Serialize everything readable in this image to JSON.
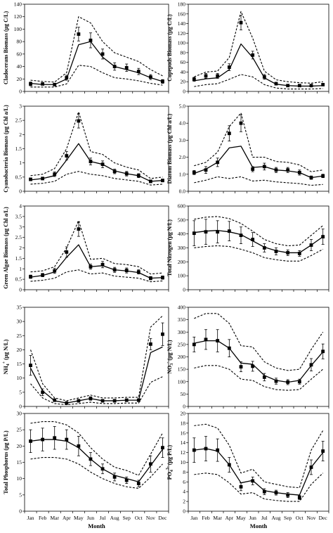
{
  "chart_data": [
    {
      "type": "line",
      "ylabel": "Cladocerans Biomass (μg C/L)",
      "ylim": [
        0,
        140
      ],
      "yticks": [
        0,
        20,
        40,
        60,
        80,
        100,
        120,
        140
      ],
      "xtick_labels_shown": false,
      "categories": [
        "Jan",
        "Feb",
        "Mar",
        "Apr",
        "May",
        "Jun",
        "Jul",
        "Aug",
        "Sep",
        "Oct",
        "Nov",
        "Dec"
      ],
      "series": [
        {
          "style": "observed_points_with_error_bars",
          "values": [
            12,
            12,
            11,
            22,
            92,
            82,
            60,
            40,
            38,
            32,
            23,
            16
          ],
          "err": [
            3,
            2,
            2,
            4,
            11,
            12,
            8,
            6,
            6,
            5,
            4,
            3
          ]
        },
        {
          "style": "solid_line",
          "values": [
            13,
            11,
            11,
            20,
            75,
            80,
            55,
            40,
            35,
            30,
            22,
            16
          ]
        },
        {
          "style": "dashed_line",
          "values": [
            18,
            16,
            15,
            30,
            120,
            110,
            80,
            62,
            55,
            48,
            35,
            25
          ]
        },
        {
          "style": "dashed_line",
          "values": [
            7,
            7,
            7,
            12,
            42,
            40,
            30,
            22,
            20,
            17,
            13,
            10
          ]
        }
      ]
    },
    {
      "type": "line",
      "ylabel": "Copepods Biomass (μg C/L)",
      "ylim": [
        0,
        180
      ],
      "yticks": [
        0,
        20,
        40,
        60,
        80,
        100,
        120,
        140,
        160,
        180
      ],
      "xtick_labels_shown": false,
      "categories": [
        "Jan",
        "Feb",
        "Mar",
        "Apr",
        "May",
        "Jun",
        "Jul",
        "Aug",
        "Sep",
        "Oct",
        "Nov",
        "Dec"
      ],
      "series": [
        {
          "style": "observed_points_with_error_bars",
          "values": [
            25,
            32,
            32,
            50,
            142,
            75,
            30,
            16,
            12,
            12,
            12,
            14
          ],
          "err": [
            4,
            5,
            5,
            7,
            15,
            8,
            5,
            3,
            2,
            2,
            2,
            2
          ]
        },
        {
          "style": "solid_line",
          "values": [
            22,
            26,
            28,
            45,
            98,
            70,
            28,
            15,
            12,
            11,
            11,
            12
          ]
        },
        {
          "style": "dashed_line",
          "values": [
            30,
            40,
            42,
            70,
            165,
            110,
            42,
            24,
            20,
            18,
            17,
            20
          ]
        },
        {
          "style": "dashed_line",
          "values": [
            10,
            14,
            16,
            25,
            35,
            30,
            14,
            7,
            5,
            5,
            5,
            6
          ]
        }
      ]
    },
    {
      "type": "line",
      "ylabel": "Cyanobacteria Biomass (μg Chl a/L)",
      "ylim": [
        0,
        3
      ],
      "yticks": [
        0,
        0.5,
        1,
        1.5,
        2,
        2.5,
        3
      ],
      "xtick_labels_shown": false,
      "categories": [
        "Jan",
        "Feb",
        "Mar",
        "Apr",
        "May",
        "Jun",
        "Jul",
        "Aug",
        "Sep",
        "Oct",
        "Nov",
        "Dec"
      ],
      "series": [
        {
          "style": "observed_points_with_error_bars",
          "values": [
            0.42,
            0.45,
            0.6,
            1.25,
            2.48,
            1.05,
            0.95,
            0.7,
            0.62,
            0.55,
            0.35,
            0.38
          ],
          "err": [
            0.05,
            0.05,
            0.08,
            0.15,
            0.25,
            0.12,
            0.12,
            0.08,
            0.08,
            0.07,
            0.05,
            0.05
          ]
        },
        {
          "style": "solid_line",
          "values": [
            0.4,
            0.45,
            0.55,
            1.1,
            1.68,
            1.05,
            0.95,
            0.72,
            0.62,
            0.55,
            0.35,
            0.38
          ]
        },
        {
          "style": "dashed_line",
          "values": [
            0.55,
            0.6,
            0.8,
            1.5,
            2.8,
            1.4,
            1.3,
            1.0,
            0.85,
            0.75,
            0.45,
            0.5
          ]
        },
        {
          "style": "dashed_line",
          "values": [
            0.25,
            0.28,
            0.35,
            0.6,
            0.7,
            0.6,
            0.55,
            0.45,
            0.4,
            0.35,
            0.22,
            0.25
          ]
        }
      ]
    },
    {
      "type": "line",
      "ylabel": "Diatom Biomass (μg Chl a/L)",
      "ylim": [
        0,
        5
      ],
      "yticks": [
        "0.0",
        "1.0",
        "2.0",
        "3.0",
        "4.0",
        "5.0"
      ],
      "xtick_labels_shown": false,
      "categories": [
        "Jan",
        "Feb",
        "Mar",
        "Apr",
        "May",
        "Jun",
        "Jul",
        "Aug",
        "Sep",
        "Oct",
        "Nov",
        "Dec"
      ],
      "series": [
        {
          "style": "observed_points_with_error_bars",
          "values": [
            1.1,
            1.25,
            1.7,
            3.4,
            4.0,
            1.3,
            1.45,
            1.25,
            1.25,
            1.1,
            0.8,
            0.9
          ],
          "err": [
            0.12,
            0.2,
            0.25,
            0.45,
            0.5,
            0.15,
            0.2,
            0.15,
            0.15,
            0.15,
            0.1,
            0.1
          ]
        },
        {
          "style": "solid_line",
          "values": [
            1.05,
            1.3,
            1.7,
            2.55,
            2.65,
            1.4,
            1.45,
            1.25,
            1.2,
            1.1,
            0.8,
            0.9
          ]
        },
        {
          "style": "dashed_line",
          "values": [
            1.5,
            1.7,
            2.3,
            3.8,
            4.6,
            2.0,
            2.0,
            1.75,
            1.7,
            1.55,
            1.15,
            1.25
          ]
        },
        {
          "style": "dashed_line",
          "values": [
            0.5,
            0.65,
            0.85,
            0.75,
            0.85,
            0.6,
            0.65,
            0.55,
            0.5,
            0.45,
            0.35,
            0.4
          ]
        }
      ]
    },
    {
      "type": "line",
      "ylabel": "Green Algae Biomass (μg Chl a/L)",
      "ylim": [
        0,
        4
      ],
      "yticks": [
        0,
        0.5,
        1,
        1.5,
        2,
        2.5,
        3,
        3.5,
        4
      ],
      "xtick_labels_shown": false,
      "categories": [
        "Jan",
        "Feb",
        "Mar",
        "Apr",
        "May",
        "Jun",
        "Jul",
        "Aug",
        "Sep",
        "Oct",
        "Nov",
        "Dec"
      ],
      "series": [
        {
          "style": "observed_points_with_error_bars",
          "values": [
            0.62,
            0.7,
            0.9,
            1.8,
            2.9,
            1.1,
            1.2,
            0.95,
            0.92,
            0.85,
            0.55,
            0.58
          ],
          "err": [
            0.08,
            0.08,
            0.12,
            0.25,
            0.35,
            0.12,
            0.15,
            0.12,
            0.12,
            0.1,
            0.08,
            0.08
          ]
        },
        {
          "style": "solid_line",
          "values": [
            0.6,
            0.68,
            0.85,
            1.55,
            2.15,
            1.1,
            1.15,
            0.95,
            0.9,
            0.82,
            0.55,
            0.58
          ]
        },
        {
          "style": "dashed_line",
          "values": [
            0.85,
            0.9,
            1.1,
            2.0,
            3.3,
            1.45,
            1.5,
            1.25,
            1.2,
            1.1,
            0.75,
            0.8
          ]
        },
        {
          "style": "dashed_line",
          "values": [
            0.4,
            0.45,
            0.55,
            0.85,
            0.95,
            0.75,
            0.8,
            0.65,
            0.6,
            0.55,
            0.38,
            0.42
          ]
        }
      ]
    },
    {
      "type": "line",
      "ylabel": "Total Nitrogen (μg N/L)",
      "ylim": [
        0,
        600
      ],
      "yticks": [
        0,
        100,
        200,
        300,
        400,
        500,
        600
      ],
      "xtick_labels_shown": false,
      "categories": [
        "Jan",
        "Feb",
        "Mar",
        "Apr",
        "May",
        "Jun",
        "Jul",
        "Aug",
        "Sep",
        "Oct",
        "Nov",
        "Dec"
      ],
      "series": [
        {
          "style": "observed_points_with_error_bars",
          "values": [
            405,
            415,
            415,
            420,
            390,
            360,
            300,
            275,
            265,
            260,
            320,
            380
          ],
          "err": [
            90,
            90,
            80,
            70,
            60,
            50,
            30,
            25,
            20,
            20,
            40,
            55
          ]
        },
        {
          "style": "solid_line",
          "values": [
            410,
            420,
            425,
            415,
            395,
            350,
            305,
            280,
            265,
            265,
            320,
            380
          ]
        },
        {
          "style": "dashed_line",
          "values": [
            505,
            520,
            525,
            510,
            475,
            420,
            360,
            330,
            315,
            320,
            390,
            460
          ]
        },
        {
          "style": "dashed_line",
          "values": [
            300,
            310,
            315,
            310,
            290,
            265,
            230,
            215,
            205,
            205,
            245,
            290
          ]
        }
      ]
    },
    {
      "type": "line",
      "ylabel": "NH4+ (μg N/L)",
      "ylim": [
        0,
        35
      ],
      "yticks": [
        0,
        5,
        10,
        15,
        20,
        25,
        30,
        35
      ],
      "xtick_labels_shown": false,
      "categories": [
        "Jan",
        "Feb",
        "Mar",
        "Apr",
        "May",
        "Jun",
        "Jul",
        "Aug",
        "Sep",
        "Oct",
        "Nov",
        "Dec"
      ],
      "series": [
        {
          "style": "observed_points_with_error_bars",
          "values": [
            14.5,
            5.0,
            2.2,
            1.2,
            2.0,
            2.8,
            2.0,
            2.0,
            2.2,
            2.2,
            22.0,
            25.5
          ],
          "err": [
            3.5,
            1.2,
            0.5,
            0.3,
            0.5,
            0.6,
            0.5,
            0.5,
            0.5,
            0.5,
            2.0,
            4.0
          ]
        },
        {
          "style": "solid_line",
          "values": [
            13.5,
            5.5,
            2.0,
            1.2,
            2.0,
            2.8,
            2.0,
            2.0,
            2.2,
            2.2,
            19.0,
            21.0
          ]
        },
        {
          "style": "dashed_line",
          "values": [
            20.0,
            8.0,
            3.0,
            2.0,
            3.0,
            4.0,
            3.0,
            3.0,
            3.2,
            3.2,
            28.0,
            32.0
          ]
        },
        {
          "style": "dashed_line",
          "values": [
            8.0,
            3.0,
            1.0,
            0.6,
            1.0,
            1.5,
            1.0,
            1.0,
            1.2,
            1.2,
            8.5,
            10.5
          ]
        }
      ]
    },
    {
      "type": "line",
      "ylabel": "NO3- (μg N/L)",
      "ylim": [
        0,
        400
      ],
      "yticks": [
        0,
        50,
        100,
        150,
        200,
        250,
        300,
        350,
        400
      ],
      "xtick_labels_shown": false,
      "categories": [
        "Jan",
        "Feb",
        "Mar",
        "Apr",
        "May",
        "Jun",
        "Jul",
        "Aug",
        "Sep",
        "Oct",
        "Nov",
        "Dec"
      ],
      "series": [
        {
          "style": "observed_points_with_error_bars",
          "values": [
            250,
            270,
            265,
            235,
            160,
            162,
            118,
            102,
            98,
            100,
            168,
            222
          ],
          "err": [
            30,
            40,
            45,
            35,
            20,
            20,
            15,
            12,
            10,
            10,
            25,
            30
          ]
        },
        {
          "style": "solid_line",
          "values": [
            255,
            265,
            265,
            235,
            175,
            170,
            125,
            105,
            98,
            105,
            165,
            220
          ]
        },
        {
          "style": "dashed_line",
          "values": [
            355,
            375,
            375,
            335,
            245,
            240,
            180,
            155,
            145,
            150,
            230,
            300
          ]
        },
        {
          "style": "dashed_line",
          "values": [
            155,
            165,
            165,
            150,
            110,
            105,
            80,
            68,
            65,
            68,
            110,
            150
          ]
        }
      ]
    },
    {
      "type": "line",
      "ylabel": "Total Phosphorus (μg P/L)",
      "xlabel": "Month",
      "ylim": [
        0,
        30
      ],
      "yticks": [
        0,
        5,
        10,
        15,
        20,
        25,
        30
      ],
      "categories": [
        "Jan",
        "Feb",
        "Mar",
        "Apr",
        "May",
        "Jun",
        "Jul",
        "Aug",
        "Sep",
        "Oct",
        "Nov",
        "Dec"
      ],
      "series": [
        {
          "style": "observed_points_with_error_bars",
          "values": [
            21.5,
            22.0,
            22.5,
            22.0,
            20.0,
            16.0,
            13.0,
            10.5,
            9.5,
            8.5,
            14.5,
            19.5
          ],
          "err": [
            3.5,
            3.5,
            3.5,
            3.0,
            3.0,
            2.0,
            1.5,
            1.2,
            1.0,
            1.0,
            2.5,
            3.0
          ]
        },
        {
          "style": "solid_line",
          "values": [
            21.5,
            22.0,
            22.0,
            21.5,
            19.5,
            16.0,
            13.0,
            11.0,
            10.0,
            9.0,
            14.0,
            19.0
          ]
        },
        {
          "style": "dashed_line",
          "values": [
            27.0,
            27.5,
            27.5,
            26.5,
            24.0,
            19.5,
            16.0,
            13.5,
            12.5,
            11.0,
            17.5,
            24.0
          ]
        },
        {
          "style": "dashed_line",
          "values": [
            16.0,
            16.5,
            16.5,
            16.0,
            14.5,
            12.0,
            10.0,
            8.5,
            7.5,
            7.0,
            10.5,
            14.5
          ]
        }
      ]
    },
    {
      "type": "line",
      "ylabel": "PO4 3- (μg P/L)",
      "xlabel": "Month",
      "ylim": [
        0,
        20
      ],
      "yticks": [
        0,
        2,
        4,
        6,
        8,
        10,
        12,
        14,
        16,
        18,
        20
      ],
      "categories": [
        "Jan",
        "Feb",
        "Mar",
        "Apr",
        "May",
        "Jun",
        "Jul",
        "Aug",
        "Sep",
        "Oct",
        "Nov",
        "Dec"
      ],
      "series": [
        {
          "style": "observed_points_with_error_bars",
          "values": [
            12.5,
            12.8,
            12.5,
            9.5,
            5.0,
            6.2,
            4.0,
            3.8,
            3.3,
            2.8,
            9.0,
            12.3
          ],
          "err": [
            2.5,
            2.5,
            2.3,
            1.5,
            0.8,
            0.8,
            0.6,
            0.5,
            0.5,
            0.4,
            1.5,
            2.0
          ]
        },
        {
          "style": "solid_line",
          "values": [
            12.5,
            12.8,
            12.3,
            9.5,
            5.8,
            6.3,
            4.2,
            3.8,
            3.5,
            3.3,
            9.0,
            12.0
          ]
        },
        {
          "style": "dashed_line",
          "values": [
            17.5,
            17.8,
            17.0,
            13.5,
            7.8,
            8.6,
            6.0,
            5.5,
            5.0,
            4.8,
            12.5,
            16.5
          ]
        },
        {
          "style": "dashed_line",
          "values": [
            7.5,
            7.8,
            7.5,
            5.8,
            3.5,
            3.8,
            2.5,
            2.2,
            2.0,
            2.0,
            5.5,
            7.8
          ]
        }
      ]
    }
  ]
}
